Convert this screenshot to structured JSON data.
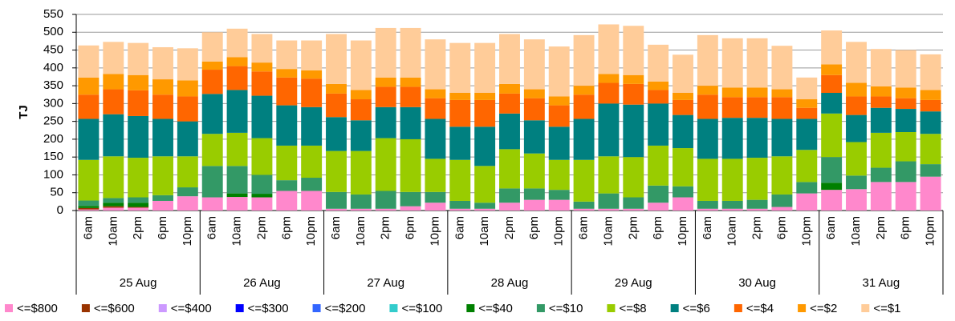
{
  "chart_data": {
    "type": "stacked-bar",
    "y_label": "TJ",
    "categories": [
      "6am",
      "10am",
      "2pm",
      "6pm",
      "10pm",
      "6am",
      "10am",
      "2pm",
      "6pm",
      "10pm",
      "6am",
      "10am",
      "2pm",
      "6pm",
      "10pm",
      "6am",
      "10am",
      "2pm",
      "6pm",
      "10pm",
      "6am",
      "10am",
      "2pm",
      "6pm",
      "10pm",
      "6am",
      "10am",
      "2pm",
      "6pm",
      "10pm",
      "6am",
      "10am",
      "2pm",
      "6pm",
      "10pm"
    ],
    "groups": [
      "25 Aug",
      "26 Aug",
      "27 Aug",
      "28 Aug",
      "29 Aug",
      "30 Aug",
      "31 Aug"
    ],
    "ylim": [
      0,
      550
    ],
    "yticks": [
      0,
      50,
      100,
      150,
      200,
      250,
      300,
      350,
      400,
      450,
      500,
      550
    ],
    "grid": true,
    "series": [
      {
        "name": "<=$800",
        "color": "#ff88cc",
        "values": [
          3,
          8,
          8,
          27,
          40,
          37,
          38,
          37,
          55,
          55,
          5,
          5,
          5,
          12,
          22,
          5,
          5,
          22,
          30,
          30,
          5,
          5,
          5,
          22,
          37,
          5,
          5,
          5,
          10,
          48,
          58,
          60,
          80,
          80,
          95
        ]
      },
      {
        "name": "<=$600",
        "color": "#993300",
        "values": [
          4,
          4,
          2,
          0,
          0,
          0,
          0,
          0,
          0,
          0,
          0,
          0,
          0,
          0,
          0,
          0,
          0,
          0,
          0,
          0,
          0,
          0,
          0,
          0,
          0,
          0,
          0,
          0,
          0,
          0,
          0,
          0,
          0,
          0,
          0
        ]
      },
      {
        "name": "<=$400",
        "color": "#cc99ff",
        "values": [
          0,
          0,
          0,
          0,
          0,
          0,
          0,
          0,
          0,
          0,
          0,
          0,
          0,
          0,
          0,
          0,
          0,
          0,
          0,
          0,
          0,
          0,
          0,
          0,
          0,
          0,
          0,
          0,
          0,
          0,
          0,
          0,
          0,
          0,
          0
        ]
      },
      {
        "name": "<=$300",
        "color": "#0000ff",
        "values": [
          0,
          0,
          0,
          0,
          0,
          0,
          0,
          0,
          0,
          0,
          0,
          0,
          0,
          0,
          0,
          0,
          0,
          0,
          0,
          0,
          0,
          0,
          0,
          0,
          0,
          0,
          0,
          0,
          0,
          0,
          0,
          0,
          0,
          0,
          0
        ]
      },
      {
        "name": "<=$200",
        "color": "#3366ff",
        "values": [
          0,
          0,
          0,
          0,
          0,
          0,
          0,
          0,
          0,
          0,
          0,
          0,
          0,
          0,
          0,
          0,
          0,
          0,
          0,
          0,
          0,
          0,
          0,
          0,
          0,
          0,
          0,
          0,
          0,
          0,
          0,
          0,
          0,
          0,
          0
        ]
      },
      {
        "name": "<=$100",
        "color": "#33cccc",
        "values": [
          0,
          0,
          0,
          0,
          0,
          0,
          0,
          0,
          0,
          0,
          0,
          0,
          0,
          0,
          0,
          0,
          0,
          0,
          0,
          0,
          0,
          0,
          0,
          0,
          0,
          0,
          0,
          0,
          0,
          0,
          0,
          0,
          0,
          0,
          0
        ]
      },
      {
        "name": "<=$40",
        "color": "#008000",
        "values": [
          6,
          10,
          12,
          0,
          0,
          0,
          10,
          10,
          0,
          0,
          0,
          0,
          0,
          0,
          0,
          0,
          0,
          0,
          0,
          0,
          0,
          0,
          0,
          0,
          0,
          0,
          0,
          0,
          0,
          0,
          20,
          0,
          0,
          0,
          0
        ]
      },
      {
        "name": "<=$10",
        "color": "#339966",
        "values": [
          15,
          13,
          15,
          16,
          25,
          88,
          77,
          53,
          30,
          37,
          47,
          40,
          50,
          40,
          30,
          22,
          17,
          40,
          32,
          28,
          20,
          43,
          32,
          48,
          31,
          22,
          22,
          25,
          35,
          32,
          72,
          38,
          40,
          58,
          35
        ]
      },
      {
        "name": "<=$8",
        "color": "#99cc00",
        "values": [
          114,
          117,
          111,
          109,
          87,
          90,
          93,
          103,
          97,
          90,
          115,
          122,
          148,
          148,
          93,
          115,
          103,
          110,
          98,
          84,
          117,
          104,
          113,
          112,
          107,
          118,
          118,
          118,
          107,
          90,
          122,
          94,
          98,
          82,
          85
        ]
      },
      {
        "name": "<=$6",
        "color": "#008080",
        "values": [
          115,
          118,
          117,
          105,
          98,
          112,
          120,
          119,
          113,
          108,
          95,
          86,
          87,
          90,
          112,
          93,
          110,
          100,
          93,
          93,
          115,
          148,
          147,
          118,
          93,
          112,
          115,
          112,
          105,
          87,
          58,
          76,
          70,
          65,
          63
        ]
      },
      {
        "name": "<=$4",
        "color": "#ff6600",
        "values": [
          68,
          70,
          72,
          68,
          70,
          68,
          67,
          68,
          78,
          80,
          66,
          59,
          57,
          57,
          58,
          75,
          75,
          56,
          62,
          60,
          68,
          58,
          58,
          38,
          42,
          68,
          58,
          58,
          61,
          31,
          50,
          52,
          32,
          30,
          32
        ]
      },
      {
        "name": "<=$2",
        "color": "#ff9900",
        "values": [
          48,
          43,
          43,
          43,
          45,
          23,
          25,
          25,
          24,
          23,
          27,
          26,
          26,
          26,
          25,
          20,
          20,
          27,
          25,
          25,
          25,
          25,
          25,
          24,
          20,
          25,
          27,
          27,
          22,
          24,
          30,
          38,
          28,
          30,
          28
        ]
      },
      {
        "name": "<=$1",
        "color": "#ffcc99",
        "values": [
          90,
          90,
          90,
          90,
          90,
          82,
          80,
          80,
          80,
          84,
          140,
          139,
          139,
          139,
          140,
          140,
          140,
          140,
          140,
          140,
          142,
          139,
          138,
          103,
          107,
          142,
          138,
          138,
          122,
          61,
          95,
          115,
          105,
          105,
          100
        ]
      }
    ]
  }
}
